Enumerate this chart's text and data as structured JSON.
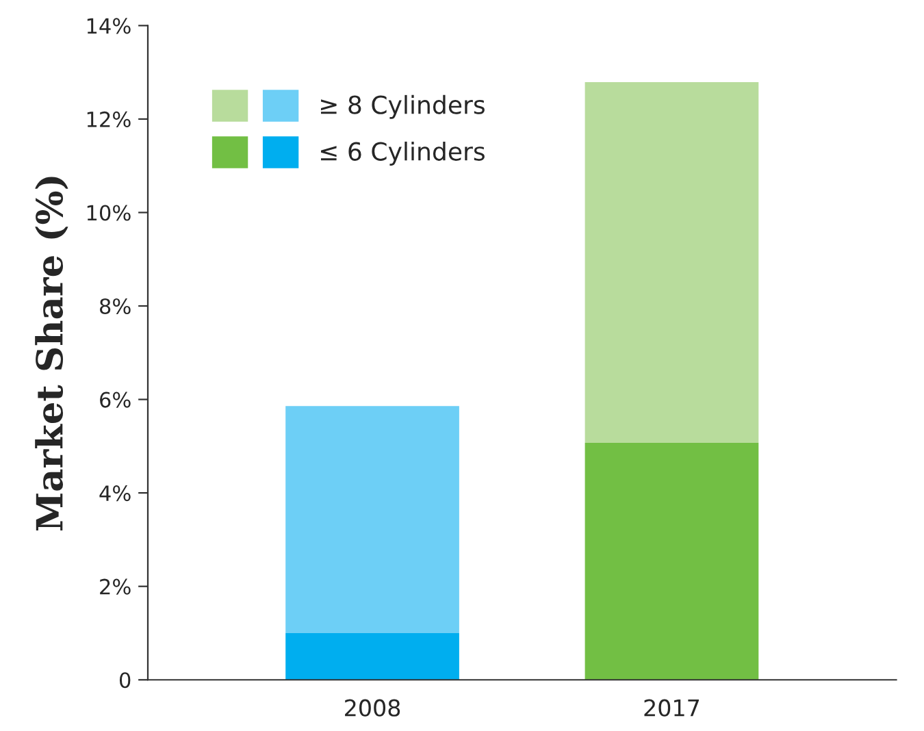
{
  "chart_data": {
    "type": "bar",
    "stacked": true,
    "ylabel": "Market Share (%)",
    "categories": [
      "2008",
      "2017"
    ],
    "series": [
      {
        "name": "≤ 6 Cylinders",
        "colors": [
          "#00aeef",
          "#72bf44"
        ],
        "values": [
          1.0,
          5.07
        ]
      },
      {
        "name": "≥ 8 Cylinders",
        "colors": [
          "#6dcff6",
          "#b8dc9c"
        ],
        "values": [
          4.86,
          7.72
        ]
      }
    ],
    "ylim": [
      0,
      14
    ],
    "yticks": [
      {
        "value": 0,
        "label": "0"
      },
      {
        "value": 2,
        "label": "2%"
      },
      {
        "value": 4,
        "label": "4%"
      },
      {
        "value": 6,
        "label": "6%"
      },
      {
        "value": 8,
        "label": "8%"
      },
      {
        "value": 10,
        "label": "10%"
      },
      {
        "value": 12,
        "label": "12%"
      },
      {
        "value": 14,
        "label": "14%"
      }
    ],
    "grid": false,
    "legend": "top left"
  }
}
